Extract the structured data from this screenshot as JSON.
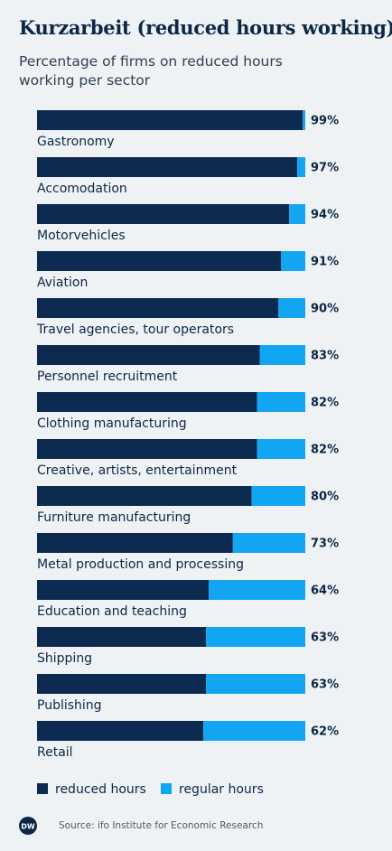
{
  "chart_data": {
    "type": "bar-stacked-horizontal",
    "title": "Kurzarbeit (reduced hours working)",
    "subtitle": "Percentage of firms on reduced hours working per sector",
    "categories": [
      "Gastronomy",
      "Accomodation",
      "Motorvehicles",
      "Aviation",
      "Travel agencies, tour operators",
      "Personnel recruitment",
      "Clothing manufacturing",
      "Creative, artists, entertainment",
      "Furniture manufacturing",
      "Metal production and processing",
      "Education and teaching",
      "Shipping",
      "Publishing",
      "Retail"
    ],
    "series": [
      {
        "name": "reduced hours",
        "color": "#0d2a50",
        "values": [
          99,
          97,
          94,
          91,
          90,
          83,
          82,
          82,
          80,
          73,
          64,
          63,
          63,
          62
        ],
        "value_labels": [
          "99%",
          "97%",
          "94%",
          "91%",
          "90%",
          "83%",
          "82%",
          "82%",
          "80%",
          "73%",
          "64%",
          "63%",
          "63%",
          "62%"
        ]
      },
      {
        "name": "regular hours",
        "color": "#12a6f2",
        "values": [
          1,
          3,
          6,
          9,
          10,
          17,
          18,
          18,
          20,
          27,
          36,
          37,
          37,
          38
        ]
      }
    ],
    "source": "Source: ifo Institute for Economic Research",
    "logo": "DW"
  }
}
